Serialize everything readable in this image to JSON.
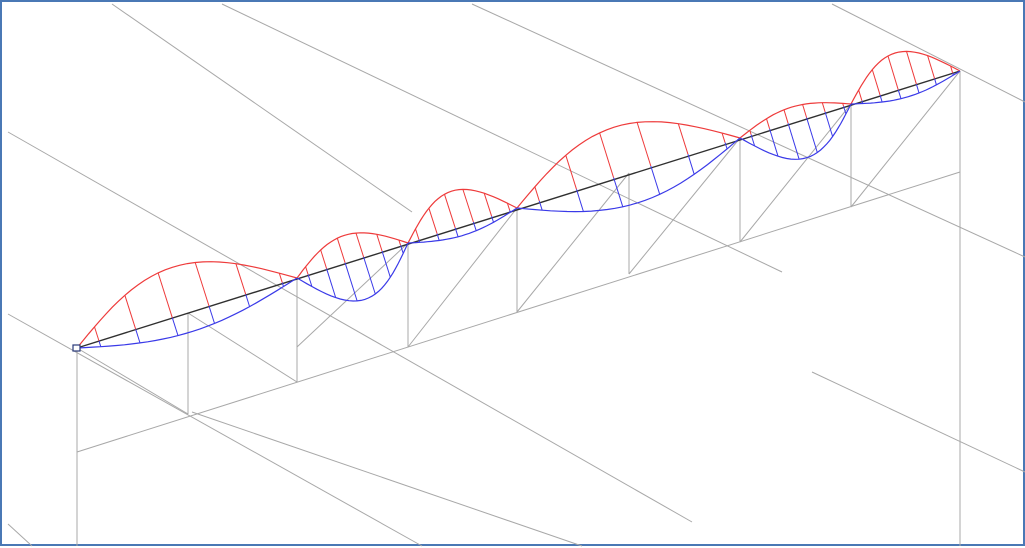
{
  "view": {
    "border_color": "#4a78b5",
    "background": "#ffffff"
  },
  "diagram": {
    "frame_color": "#a8a8a8",
    "beam_color": "#303030",
    "positive_color": "#ee3b3b",
    "negative_color": "#3a3ae8",
    "support_color": "#2a3a7a",
    "spans": 6,
    "curves": [
      {
        "span": 1,
        "sign": "positive",
        "amplitude": 1.0
      },
      {
        "span": 1,
        "sign": "negative",
        "amplitude": 0.4
      },
      {
        "span": 2,
        "sign": "positive",
        "amplitude": 0.55
      },
      {
        "span": 2,
        "sign": "negative",
        "amplitude": 0.85
      },
      {
        "span": 3,
        "sign": "positive",
        "amplitude": 0.75
      },
      {
        "span": 3,
        "sign": "negative",
        "amplitude": 0.2
      },
      {
        "span": 4,
        "sign": "positive",
        "amplitude": 1.0
      },
      {
        "span": 4,
        "sign": "negative",
        "amplitude": 0.65
      },
      {
        "span": 5,
        "sign": "positive",
        "amplitude": 0.3
      },
      {
        "span": 5,
        "sign": "negative",
        "amplitude": 0.8
      },
      {
        "span": 6,
        "sign": "positive",
        "amplitude": 0.75
      },
      {
        "span": 6,
        "sign": "negative",
        "amplitude": 0.2
      }
    ]
  }
}
